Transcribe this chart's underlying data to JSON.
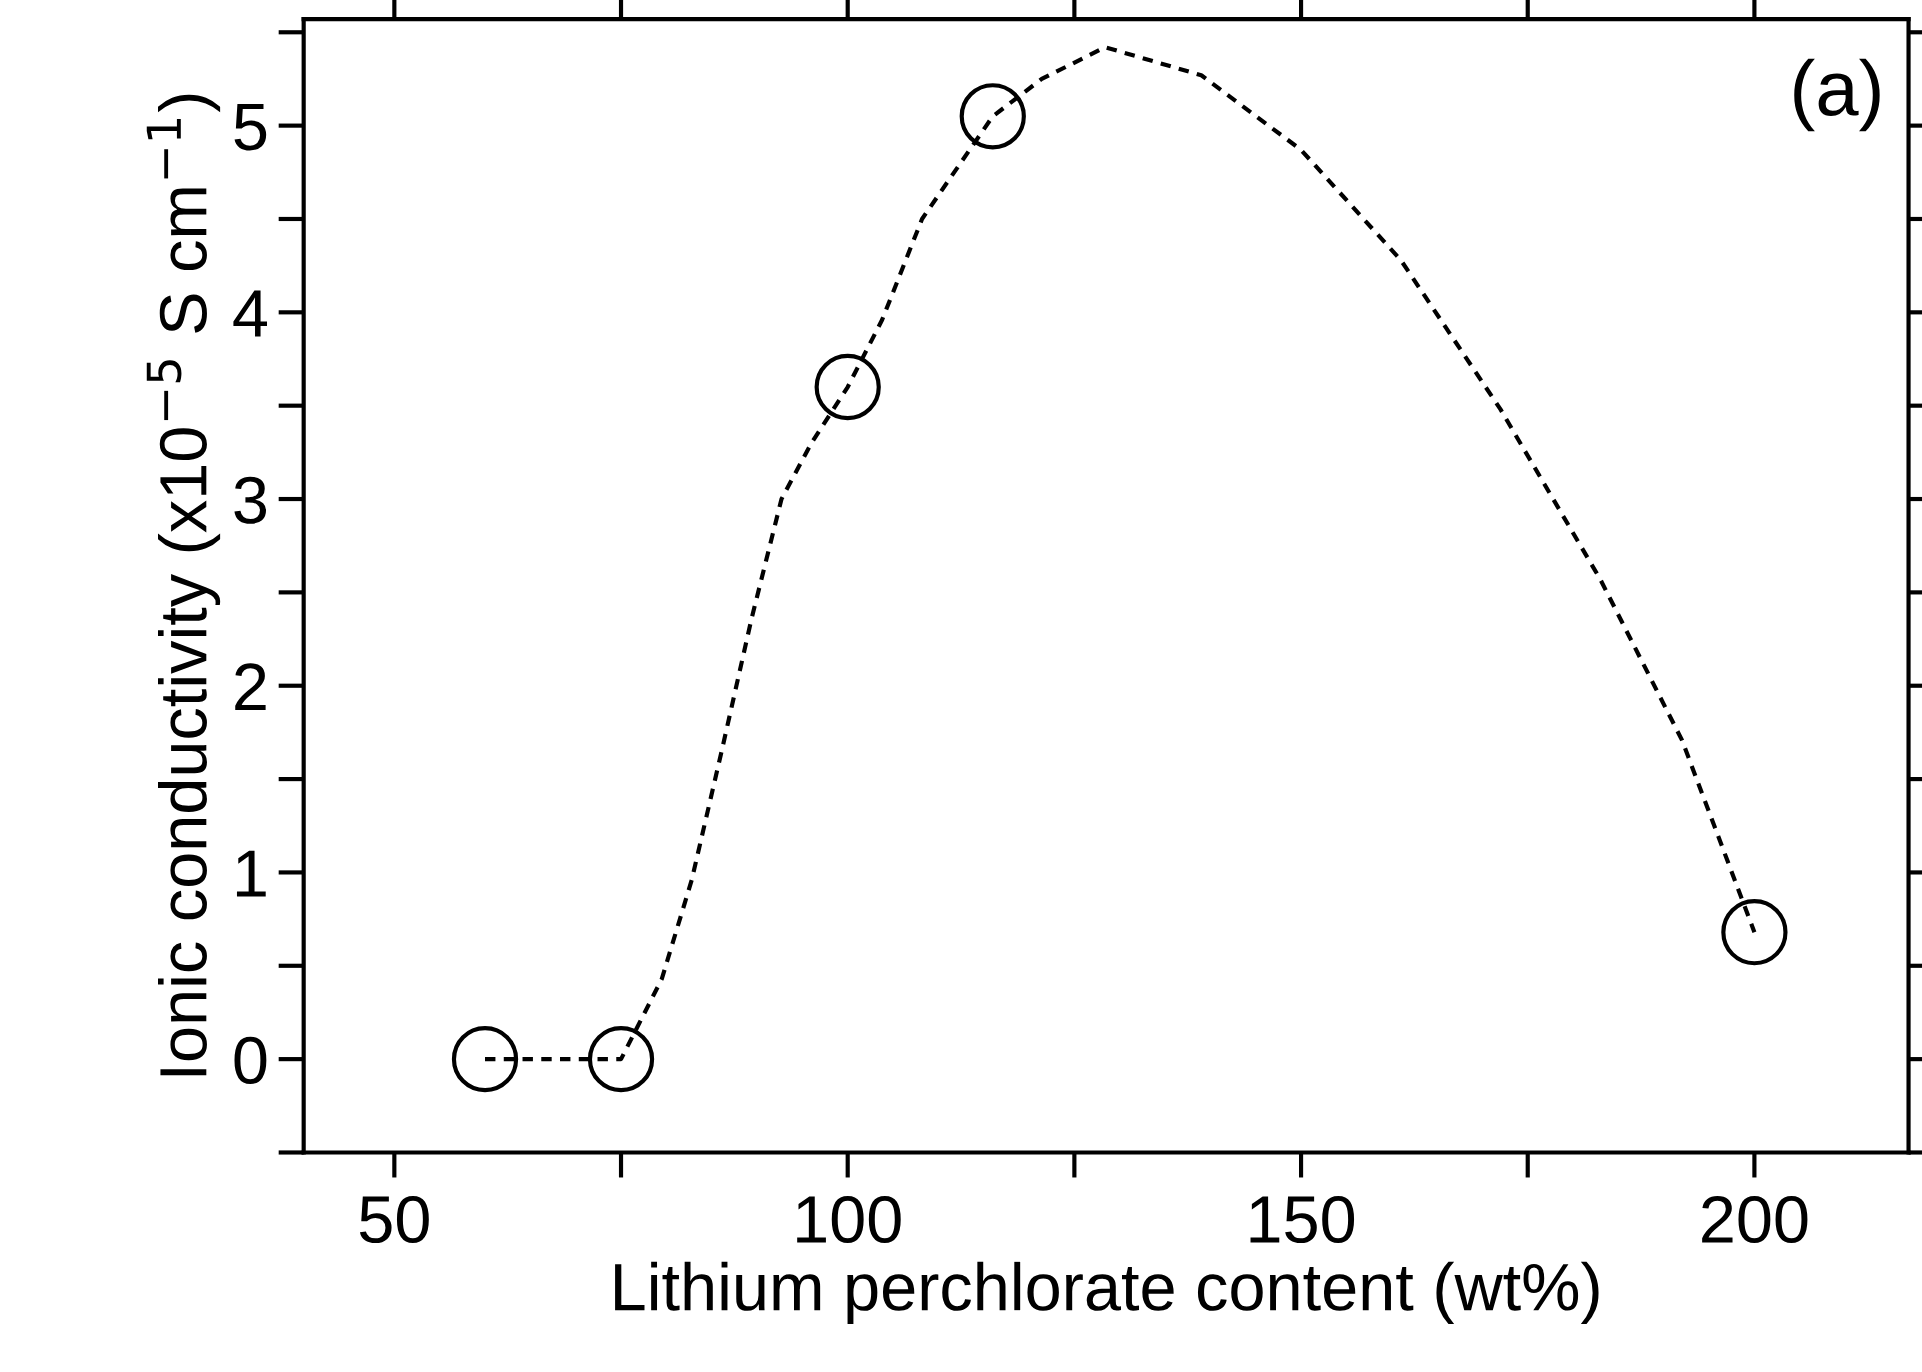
{
  "chart_data": {
    "type": "scatter",
    "xlabel": "Lithium perchlorate content (wt%)",
    "ylabel": "Ionic conductivity (x10$^{−5}$ S cm$^{−1}$)",
    "annotations": [
      "(a)"
    ],
    "xlim": [
      40,
      217
    ],
    "ylim": [
      -0.5,
      5.57
    ],
    "xticks": [
      50,
      {
        "value": 75,
        "label": null
      },
      100,
      {
        "value": 125,
        "label": null
      },
      150,
      {
        "value": 175,
        "label": null
      },
      200
    ],
    "yticks": [
      {
        "value": -0.5,
        "label": null
      },
      0,
      {
        "value": 0.5,
        "label": null
      },
      1,
      {
        "value": 1.5,
        "label": null
      },
      2,
      {
        "value": 2.5,
        "label": null
      },
      3,
      {
        "value": 3.5,
        "label": null
      },
      4,
      {
        "value": 4.5,
        "label": null
      },
      5,
      {
        "value": 5.5,
        "label": null
      }
    ],
    "grid": false,
    "legend": false,
    "series": [
      {
        "type": "line",
        "color": "#000000",
        "line_style": "dashed",
        "marker": "none",
        "x": [
          60,
          75,
          79.5,
          82.8,
          86.1,
          89.4,
          92.7,
          96,
          100,
          103.8,
          108.2,
          116,
          121.4,
          128.4,
          139,
          150,
          161,
          172,
          183,
          192,
          200
        ],
        "values": [
          0,
          0,
          0.43,
          0.96,
          1.65,
          2.36,
          3.0,
          3.3,
          3.6,
          3.96,
          4.5,
          5.05,
          5.25,
          5.42,
          5.27,
          4.87,
          4.28,
          3.48,
          2.57,
          1.71,
          0.68
        ]
      },
      {
        "color": "#000000",
        "marker": "circle",
        "x": [
          60,
          75,
          100,
          116,
          200
        ],
        "values": [
          0,
          0,
          3.6,
          5.05,
          0.68
        ]
      }
    ]
  }
}
